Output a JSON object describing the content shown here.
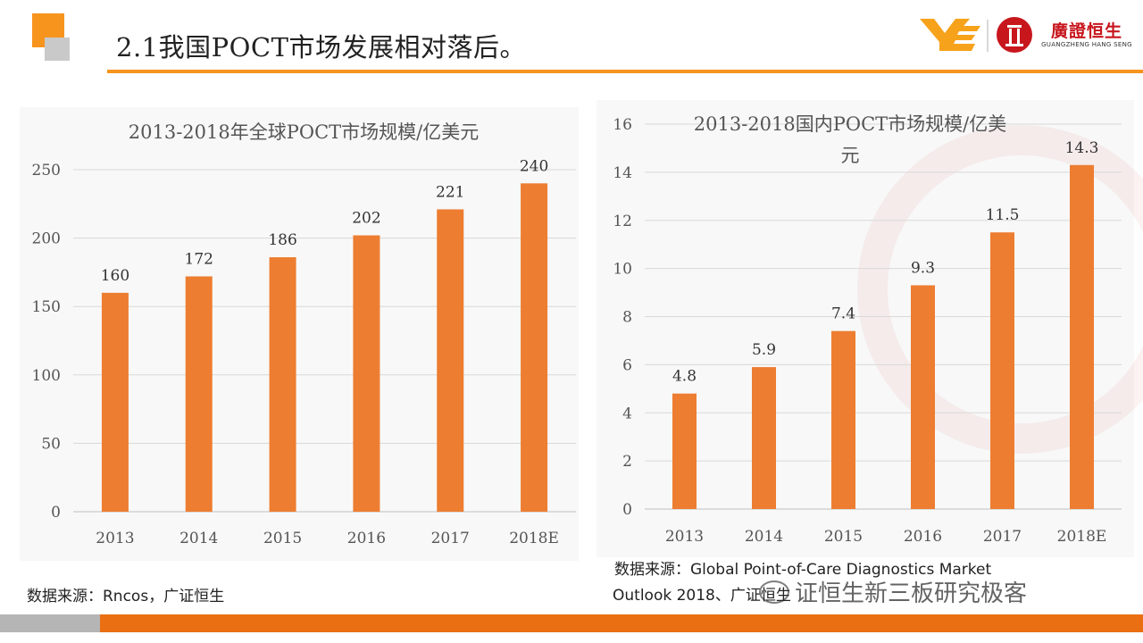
{
  "header": {
    "title": "2.1我国POCT市场发展相对落后。",
    "logo_name": "廣證恒生",
    "logo_sub": "GUANGZHENG HANG SENG"
  },
  "colors": {
    "accent": "#f7941d",
    "bar": "#ed7d31",
    "footer": "#ea6f12",
    "brand_red": "#c8161d"
  },
  "chart_data": [
    {
      "type": "bar",
      "title": "2013-2018年全球POCT市场规模/亿美元",
      "categories": [
        "2013",
        "2014",
        "2015",
        "2016",
        "2017",
        "2018E"
      ],
      "values": [
        160,
        172,
        186,
        202,
        221,
        240
      ],
      "ylim": [
        0,
        250
      ],
      "yticks": [
        0,
        50,
        100,
        150,
        200,
        250
      ],
      "grid": true,
      "data_labels": true,
      "source": "数据来源：Rncos，广证恒生"
    },
    {
      "type": "bar",
      "title": "2013-2018国内POCT市场规模/亿美元",
      "title_lines": [
        "2013-2018国内POCT市场规模/亿美",
        "元"
      ],
      "categories": [
        "2013",
        "2014",
        "2015",
        "2016",
        "2017",
        "2018E"
      ],
      "values": [
        4.8,
        5.9,
        7.4,
        9.3,
        11.5,
        14.3
      ],
      "ylim": [
        0,
        16
      ],
      "yticks": [
        0,
        2,
        4,
        6,
        8,
        10,
        12,
        14,
        16
      ],
      "grid": true,
      "data_labels": true,
      "source_lines": [
        "数据来源：Global Point-of-Care Diagnostics Market",
        "Outlook 2018、广证恒生"
      ]
    }
  ],
  "watermark": "证恒生新三板研究极客"
}
